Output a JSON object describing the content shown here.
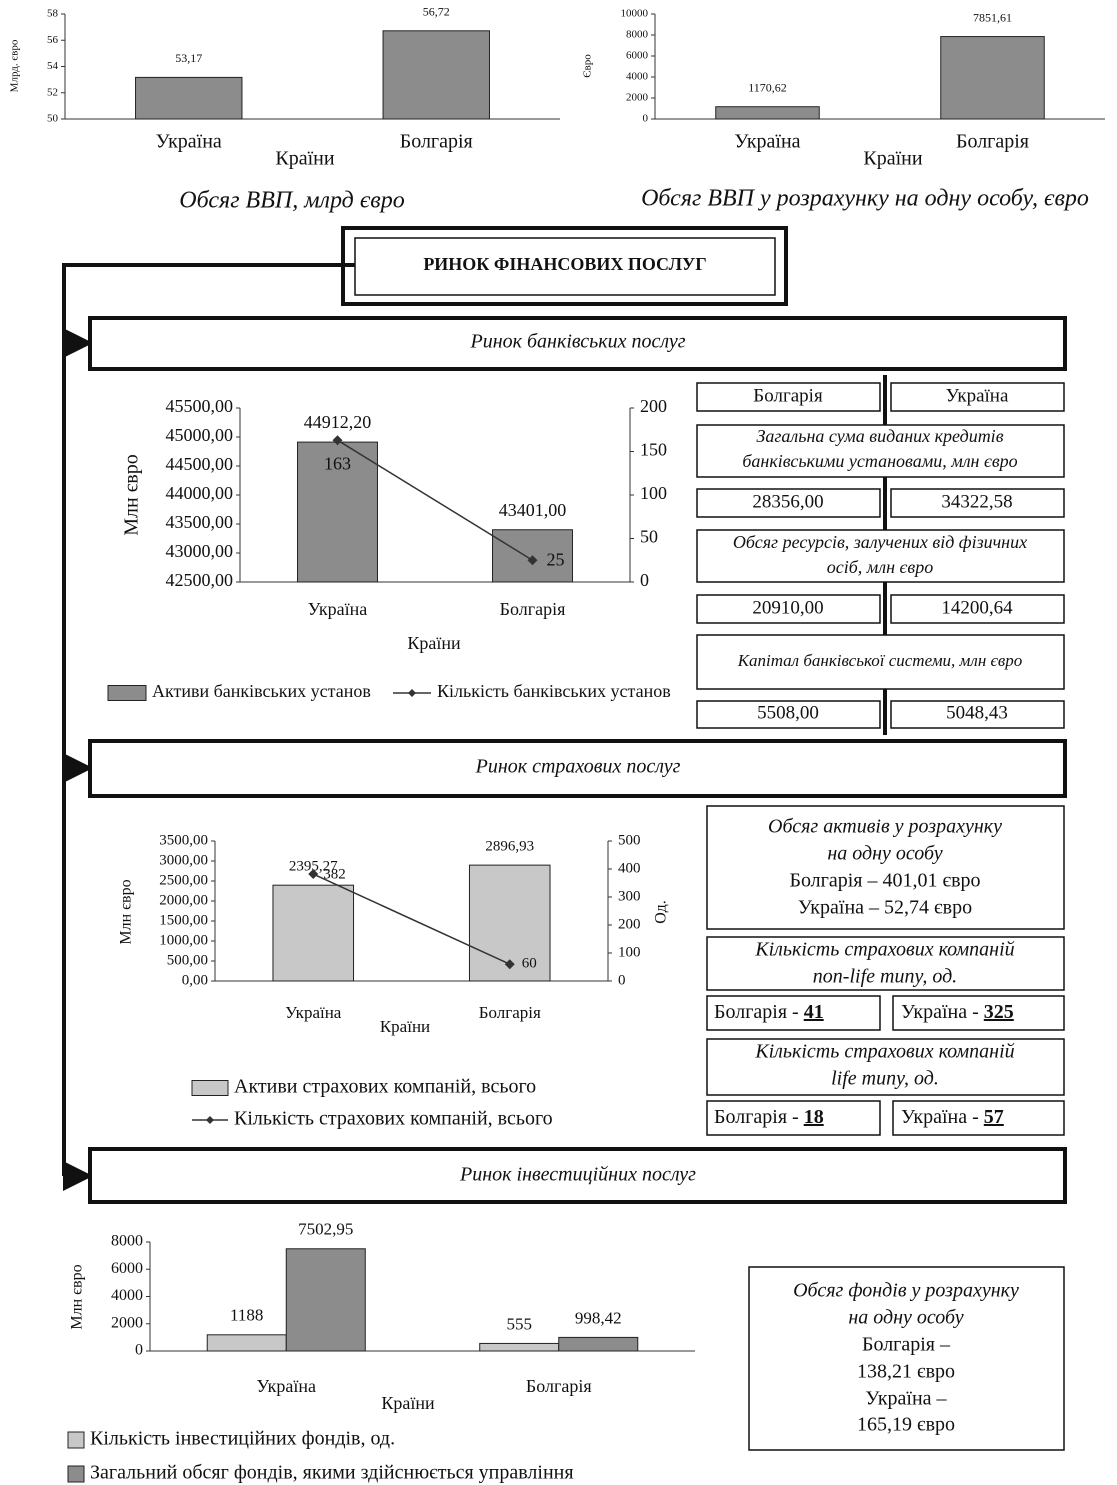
{
  "chart_data": [
    {
      "type": "bar",
      "title": "Обсяг ВВП, млрд  євро",
      "ylabel": "Млрд. євро",
      "xlabel": "Країни",
      "categories": [
        "Україна",
        "Болгарія"
      ],
      "values": [
        53.17,
        56.72
      ],
      "value_labels": [
        "53,17",
        "56,72"
      ],
      "color": "#8c8c8c",
      "ylim": [
        50,
        58
      ],
      "yticks": [
        50,
        52,
        54,
        56,
        58
      ]
    },
    {
      "type": "bar",
      "title": "Обсяг ВВП у розрахунку на одну особу, євро",
      "ylabel": "Євро",
      "xlabel": "Країни",
      "categories": [
        "Україна",
        "Болгарія"
      ],
      "values": [
        1170.62,
        7851.61
      ],
      "value_labels": [
        "1170,62",
        "7851,61"
      ],
      "color": "#8c8c8c",
      "ylim": [
        0,
        10000
      ],
      "yticks": [
        0,
        2000,
        4000,
        6000,
        8000,
        10000
      ]
    },
    {
      "type": "combo",
      "ylabel": "Млн  євро",
      "xlabel": "Країни",
      "categories": [
        "Україна",
        "Болгарія"
      ],
      "series": [
        {
          "name": "Активи банківських установ",
          "color": "#8c8c8c",
          "values": [
            44912.2,
            43401
          ],
          "value_labels": [
            "44912,20",
            "43401,00"
          ]
        },
        {
          "name": "Кількість банківських установ",
          "color": "#333333",
          "axis": "y2",
          "values": [
            163,
            25
          ]
        }
      ],
      "ylim": [
        42500,
        45500
      ],
      "yticks": [
        {
          "value": 42500,
          "label": "42500,00"
        },
        {
          "value": 43000,
          "label": "43000,00"
        },
        {
          "value": 43500,
          "label": "43500,00"
        },
        {
          "value": 44000,
          "label": "44000,00"
        },
        {
          "value": 44500,
          "label": "44500,00"
        },
        {
          "value": 45000,
          "label": "45000,00"
        },
        {
          "value": 45500,
          "label": "45500,00"
        }
      ],
      "y2lim": [
        0,
        200
      ],
      "y2ticks": [
        0,
        50,
        100,
        150,
        200
      ]
    },
    {
      "type": "combo",
      "ylabel": "Млн  євро",
      "y2label": "Од.",
      "xlabel": "Країни",
      "categories": [
        "Україна",
        "Болгарія"
      ],
      "series": [
        {
          "name": "Активи страхових компаній, всього",
          "color": "#c8c8c8",
          "values": [
            2395.27,
            2896.93
          ],
          "value_labels": [
            "2395,27",
            "2896,93"
          ]
        },
        {
          "name": "Кількість страхових компаній, всього",
          "color": "#333333",
          "axis": "y2",
          "values": [
            382,
            60
          ]
        }
      ],
      "ylim": [
        0,
        3500
      ],
      "yticks": [
        {
          "value": 0,
          "label": "0,00"
        },
        {
          "value": 500,
          "label": "500,00"
        },
        {
          "value": 1000,
          "label": "1000,00"
        },
        {
          "value": 1500,
          "label": "1500,00"
        },
        {
          "value": 2000,
          "label": "2000,00"
        },
        {
          "value": 2500,
          "label": "2500,00"
        },
        {
          "value": 3000,
          "label": "3000,00"
        },
        {
          "value": 3500,
          "label": "3500,00"
        }
      ],
      "y2lim": [
        0,
        500
      ],
      "y2ticks": [
        0,
        100,
        200,
        300,
        400,
        500
      ]
    },
    {
      "type": "bar",
      "ylabel": "Млн  євро",
      "xlabel": "Країни",
      "categories": [
        "Україна",
        "Болгарія"
      ],
      "series": [
        {
          "name": "Кількість інвестиційних фондів, од.",
          "color": "#c8c8c8",
          "values": [
            1188,
            555
          ]
        },
        {
          "name": "Загальний обсяг фондів, якими здійснюється управління",
          "color": "#8c8c8c",
          "values": [
            7502.95,
            998.42
          ],
          "value_labels": [
            "7502,95",
            "998,42"
          ]
        }
      ],
      "ylim": [
        0,
        8000
      ],
      "yticks": [
        0,
        2000,
        4000,
        6000,
        8000
      ]
    }
  ],
  "diagram": {
    "title": "РИНОК ФІНАНСОВИХ ПОСЛУГ",
    "banking": {
      "heading": "Ринок банківських послуг",
      "columns": [
        "Болгарія",
        "Україна"
      ],
      "rows": [
        {
          "label": [
            "Загальна сума виданих кредитів",
            "банківськими установами, млн  євро"
          ],
          "values": [
            "28356,00",
            "34322,58"
          ]
        },
        {
          "label": [
            "Обсяг ресурсів, залучених від фізичних",
            "осіб, млн  євро"
          ],
          "values": [
            "20910,00",
            "14200,64"
          ]
        },
        {
          "label": [
            "Капітал банківської системи, млн  євро"
          ],
          "values": [
            "5508,00",
            "5048,43"
          ]
        }
      ]
    },
    "insurance": {
      "heading": "Ринок страхових послуг",
      "per_capita": [
        "Обсяг активів у розрахунку",
        "на одну особу",
        "Болгарія – 401,01 євро",
        "Україна – 52,74 євро"
      ],
      "non_life": {
        "label": [
          "Кількість страхових компаній",
          "non-life типу, од."
        ],
        "cells": [
          {
            "country": "Болгарія -",
            "value": "41"
          },
          {
            "country": "Україна -",
            "value": "325"
          }
        ]
      },
      "life": {
        "label": [
          "Кількість страхових компаній",
          "life типу, од."
        ],
        "cells": [
          {
            "country": "Болгарія -",
            "value": "18"
          },
          {
            "country": "Україна -",
            "value": "57"
          }
        ]
      }
    },
    "investment": {
      "heading": "Ринок інвестиційних послуг",
      "per_capita": [
        "Обсяг фондів у розрахунку",
        "на одну особу",
        "Болгарія –",
        "138,21 євро",
        "Україна –",
        "165,19 євро"
      ]
    }
  }
}
